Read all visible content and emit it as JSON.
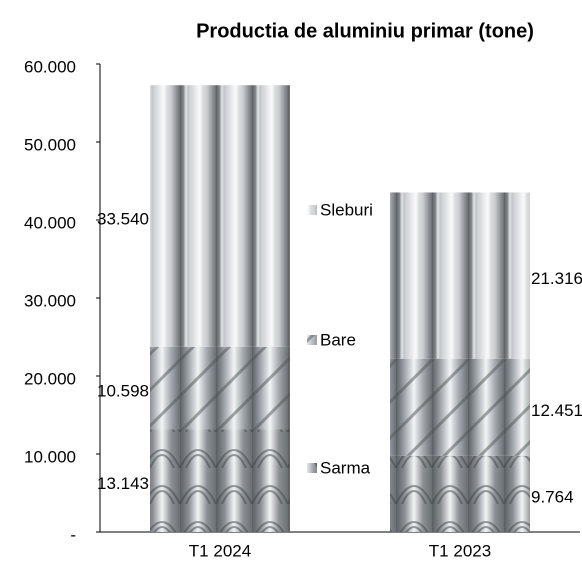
{
  "chart_data": {
    "type": "stacked-bar",
    "title": "Productia de aluminiu primar (tone)",
    "categories": [
      "T1 2024",
      "T1 2023"
    ],
    "series": [
      {
        "name": "Sarma",
        "color": "#8c9196",
        "values": [
          13143,
          9764
        ],
        "value_labels": [
          "13.143",
          "9.764"
        ]
      },
      {
        "name": "Bare",
        "color": "#a3a9ae",
        "values": [
          10598,
          12451
        ],
        "value_labels": [
          "10.598",
          "12.451"
        ]
      },
      {
        "name": "Sleburi",
        "color": "#c9cdd1",
        "values": [
          33540,
          21316
        ],
        "value_labels": [
          "33.540",
          "21.316"
        ]
      }
    ],
    "ylim": [
      0,
      60000
    ],
    "yticks": [
      {
        "value": 0,
        "label": "-"
      },
      {
        "value": 10000,
        "label": "10.000"
      },
      {
        "value": 20000,
        "label": "20.000"
      },
      {
        "value": 30000,
        "label": "30.000"
      },
      {
        "value": 40000,
        "label": "40.000"
      },
      {
        "value": 50000,
        "label": "50.000"
      },
      {
        "value": 60000,
        "label": "60.000"
      }
    ]
  }
}
